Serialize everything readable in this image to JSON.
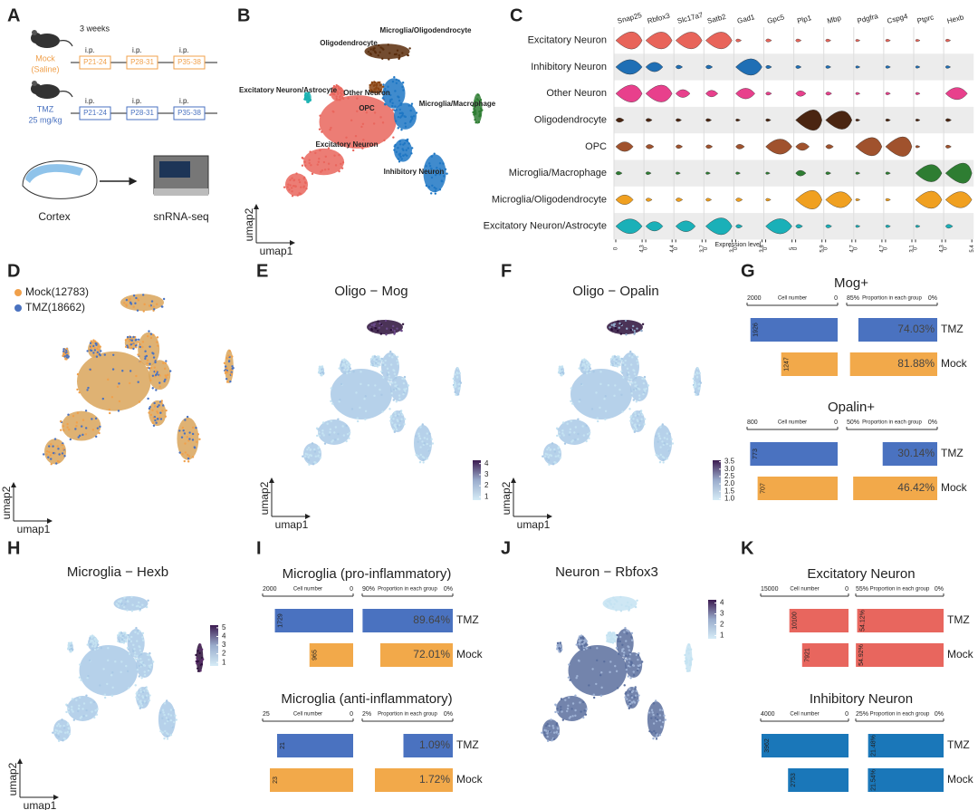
{
  "panel_labels": [
    "A",
    "B",
    "C",
    "D",
    "E",
    "F",
    "G",
    "H",
    "I",
    "J",
    "K"
  ],
  "panel_a": {
    "duration": "3 weeks",
    "groups": [
      {
        "name": "Mock",
        "dose": "(Saline)",
        "color": "#f0a04b",
        "injections": [
          {
            "route": "i.p.",
            "window": "P21-24"
          },
          {
            "route": "i.p.",
            "window": "P28-31"
          },
          {
            "route": "i.p.",
            "window": "P35-38"
          }
        ]
      },
      {
        "name": "TMZ",
        "dose": "25 mg/kg",
        "color": "#4a72c0",
        "injections": [
          {
            "route": "i.p.",
            "window": "P21-24"
          },
          {
            "route": "i.p.",
            "window": "P28-31"
          },
          {
            "route": "i.p.",
            "window": "P35-38"
          }
        ]
      }
    ],
    "tissue": "Cortex",
    "assay": "snRNA-seq"
  },
  "panel_b": {
    "clusters": [
      "Oligodendrocyte",
      "Microglia/Oligodendrocyte",
      "Excitatory Neuron/Astrocyte",
      "Other Neuron",
      "OPC",
      "Microglia/Macrophage",
      "Excitatory Neuron",
      "Inhibitory Neuron"
    ],
    "x_label": "umap1",
    "y_label": "umap2"
  },
  "panel_c": {
    "cell_types": [
      "Excitatory Neuron",
      "Inhibitory Neuron",
      "Other Neuron",
      "Oligodendrocyte",
      "OPC",
      "Microglia/Macrophage",
      "Microglia/Oligodendrocyte",
      "Excitatory Neuron/Astrocyte"
    ],
    "cell_colors": [
      "#e8645a",
      "#1f6fb5",
      "#e8408c",
      "#4a2511",
      "#a0522d",
      "#2e7d32",
      "#f0a020",
      "#1ab0b8"
    ],
    "genes": [
      {
        "name": "Snap25",
        "xlim": [
          0,
          4.3
        ],
        "values": [
          3,
          2.5,
          3,
          0.5,
          1.5,
          0.3,
          1.5,
          2.5
        ]
      },
      {
        "name": "Rbfox3",
        "xlim": [
          0,
          4.4
        ],
        "values": [
          3,
          1.5,
          3,
          0.3,
          0.5,
          0.2,
          0.3,
          1.5
        ]
      },
      {
        "name": "Slc17a7",
        "xlim": [
          0,
          3.7
        ],
        "values": [
          2.5,
          0.3,
          1,
          0.2,
          0.3,
          0.1,
          0.3,
          1.5
        ]
      },
      {
        "name": "Satb2",
        "xlim": [
          0,
          3.7
        ],
        "values": [
          2.5,
          0.3,
          0.8,
          0.2,
          0.3,
          0.1,
          0.2,
          2.5
        ]
      },
      {
        "name": "Gad1",
        "xlim": [
          0,
          3.8
        ],
        "values": [
          0.2,
          2.5,
          1.5,
          0.1,
          0.5,
          0.1,
          0.3,
          0.3
        ]
      },
      {
        "name": "Gpc5",
        "xlim": [
          0,
          5
        ],
        "values": [
          0.3,
          0.3,
          0.3,
          0.2,
          3,
          0.1,
          0.2,
          3
        ]
      },
      {
        "name": "Plp1",
        "xlim": [
          0,
          5.9
        ],
        "values": [
          0.3,
          0.3,
          1,
          5,
          1.5,
          1,
          4.5,
          0.5
        ]
      },
      {
        "name": "Mbp",
        "xlim": [
          0,
          4.7
        ],
        "values": [
          0.2,
          0.2,
          0.3,
          3.5,
          0.5,
          0.2,
          3,
          0.3
        ]
      },
      {
        "name": "Pdgfra",
        "xlim": [
          0,
          4.7
        ],
        "values": [
          0.1,
          0.1,
          0.1,
          0.1,
          3.5,
          0.1,
          0.1,
          0.1
        ]
      },
      {
        "name": "Cspg4",
        "xlim": [
          0,
          3.1
        ],
        "values": [
          0.1,
          0.1,
          0.1,
          0.1,
          2.5,
          0.1,
          0.1,
          0.1
        ]
      },
      {
        "name": "Ptprc",
        "xlim": [
          0,
          4.3
        ],
        "values": [
          0.1,
          0.1,
          0.1,
          0.1,
          0.1,
          3,
          3,
          0.1
        ]
      },
      {
        "name": "Hexb",
        "xlim": [
          0,
          5.4
        ],
        "values": [
          0.2,
          0.2,
          2.5,
          0.3,
          0.3,
          4.5,
          3.5,
          0.5
        ]
      }
    ],
    "x_label": "Expression level"
  },
  "panel_d": {
    "legend": [
      {
        "label": "Mock(12783)",
        "color": "#f0a04b"
      },
      {
        "label": "TMZ(18662)",
        "color": "#4a72c0"
      }
    ],
    "x_label": "umap1",
    "y_label": "umap2"
  },
  "panel_e": {
    "title": "Oligo − Mog",
    "colorbar_lim": [
      0.7,
      4.3
    ],
    "colorbar_ticks": [
      1,
      2,
      3,
      4
    ],
    "x_label": "umap1",
    "y_label": "umap2"
  },
  "panel_f": {
    "title": "Oligo − Opalin",
    "colorbar_lim": [
      0.9,
      3.6
    ],
    "colorbar_ticks": [
      {
        "value": 1,
        "label": "1.0"
      },
      {
        "value": 1.5,
        "label": "1.5"
      },
      {
        "value": 2,
        "label": "2.0"
      },
      {
        "value": 2.5,
        "label": "2.5"
      },
      {
        "value": 3,
        "label": "3.0"
      },
      {
        "value": 3.5,
        "label": "3.5"
      }
    ],
    "x_label": "umap1",
    "y_label": "umap2"
  },
  "panel_g": {
    "charts": [
      {
        "title": "Mog+",
        "count_label": "Cell number",
        "proportion_label": "Proportion in each group",
        "groups": [
          "TMZ",
          "Mock"
        ],
        "colors": [
          "#4a72c0",
          "#f2a94a"
        ],
        "count_lim": [
          2000,
          0
        ],
        "count_ticks": [
          2000,
          0
        ],
        "counts": [
          1926,
          1247
        ],
        "proportion_lim": [
          85,
          0
        ],
        "proportion_ticks": [
          {
            "value": 85,
            "label": "85%"
          },
          {
            "value": 0,
            "label": "0%"
          }
        ],
        "proportions": [
          74.03,
          81.88
        ],
        "proportion_labels": [
          "74.03%",
          "81.88%"
        ]
      },
      {
        "title": "Opalin+",
        "count_label": "Cell number",
        "proportion_label": "Proportion in each group",
        "groups": [
          "TMZ",
          "Mock"
        ],
        "colors": [
          "#4a72c0",
          "#f2a94a"
        ],
        "count_lim": [
          800,
          0
        ],
        "count_ticks": [
          800,
          0
        ],
        "counts": [
          773,
          707
        ],
        "proportion_lim": [
          50,
          0
        ],
        "proportion_ticks": [
          {
            "value": 50,
            "label": "50%"
          },
          {
            "value": 0,
            "label": "0%"
          }
        ],
        "proportions": [
          30.14,
          46.42
        ],
        "proportion_labels": [
          "30.14%",
          "46.42%"
        ]
      }
    ]
  },
  "panel_h": {
    "title": "Microglia − Hexb",
    "colorbar_lim": [
      0.6,
      5.3
    ],
    "colorbar_ticks": [
      1,
      2,
      3,
      4,
      5
    ],
    "x_label": "umap1",
    "y_label": "umap2"
  },
  "panel_i": {
    "charts": [
      {
        "title": "Microglia (pro-inflammatory)",
        "count_label": "Cell number",
        "proportion_label": "Proportion in each group",
        "groups": [
          "TMZ",
          "Mock"
        ],
        "colors": [
          "#4a72c0",
          "#f2a94a"
        ],
        "count_lim": [
          2000,
          0
        ],
        "count_ticks": [
          2000,
          0
        ],
        "counts": [
          1729,
          965
        ],
        "proportion_lim": [
          90,
          0
        ],
        "proportion_ticks": [
          {
            "value": 90,
            "label": "90%"
          },
          {
            "value": 0,
            "label": "0%"
          }
        ],
        "proportions": [
          89.64,
          72.01
        ],
        "proportion_labels": [
          "89.64%",
          "72.01%"
        ]
      },
      {
        "title": "Microglia (anti-inflammatory)",
        "count_label": "Cell number",
        "proportion_label": "Proportion in each group",
        "groups": [
          "TMZ",
          "Mock"
        ],
        "colors": [
          "#4a72c0",
          "#f2a94a"
        ],
        "count_lim": [
          25,
          0
        ],
        "count_ticks": [
          25,
          0
        ],
        "counts": [
          21,
          23
        ],
        "proportion_lim": [
          2,
          0
        ],
        "proportion_ticks": [
          {
            "value": 2,
            "label": "2%"
          },
          {
            "value": 0,
            "label": "0%"
          }
        ],
        "proportions": [
          1.09,
          1.72
        ],
        "proportion_labels": [
          "1.09%",
          "1.72%"
        ]
      }
    ]
  },
  "panel_j": {
    "title": "Neuron − Rbfox3",
    "colorbar_lim": [
      0.7,
      4.3
    ],
    "colorbar_ticks": [
      1,
      2,
      3,
      4
    ]
  },
  "panel_k": {
    "charts": [
      {
        "title": "Excitatory Neuron",
        "count_label": "Cell number",
        "proportion_label": "Proportion in each group",
        "groups": [
          "TMZ",
          "Mock"
        ],
        "colors": [
          "#e8665e",
          "#e8665e"
        ],
        "count_lim": [
          15000,
          0
        ],
        "count_ticks": [
          15000,
          0
        ],
        "counts": [
          10100,
          7921
        ],
        "proportion_lim": [
          55,
          0
        ],
        "proportion_ticks": [
          {
            "value": 55,
            "label": "55%"
          },
          {
            "value": 0,
            "label": "0%"
          }
        ],
        "proportions": [
          54.12,
          54.92
        ],
        "proportion_labels": [
          "54.12%",
          "54.92%"
        ]
      },
      {
        "title": "Inhibitory Neuron",
        "count_label": "Cell number",
        "proportion_label": "Proportion in each group",
        "groups": [
          "TMZ",
          "Mock"
        ],
        "colors": [
          "#1a77b9",
          "#1a77b9"
        ],
        "count_lim": [
          4000,
          0
        ],
        "count_ticks": [
          4000,
          0
        ],
        "counts": [
          3962,
          2753
        ],
        "proportion_lim": [
          25,
          0
        ],
        "proportion_ticks": [
          {
            "value": 25,
            "label": "25%"
          },
          {
            "value": 0,
            "label": "0%"
          }
        ],
        "proportions": [
          21.48,
          21.54
        ],
        "proportion_labels": [
          "21.48%",
          "21.54%"
        ]
      }
    ]
  }
}
